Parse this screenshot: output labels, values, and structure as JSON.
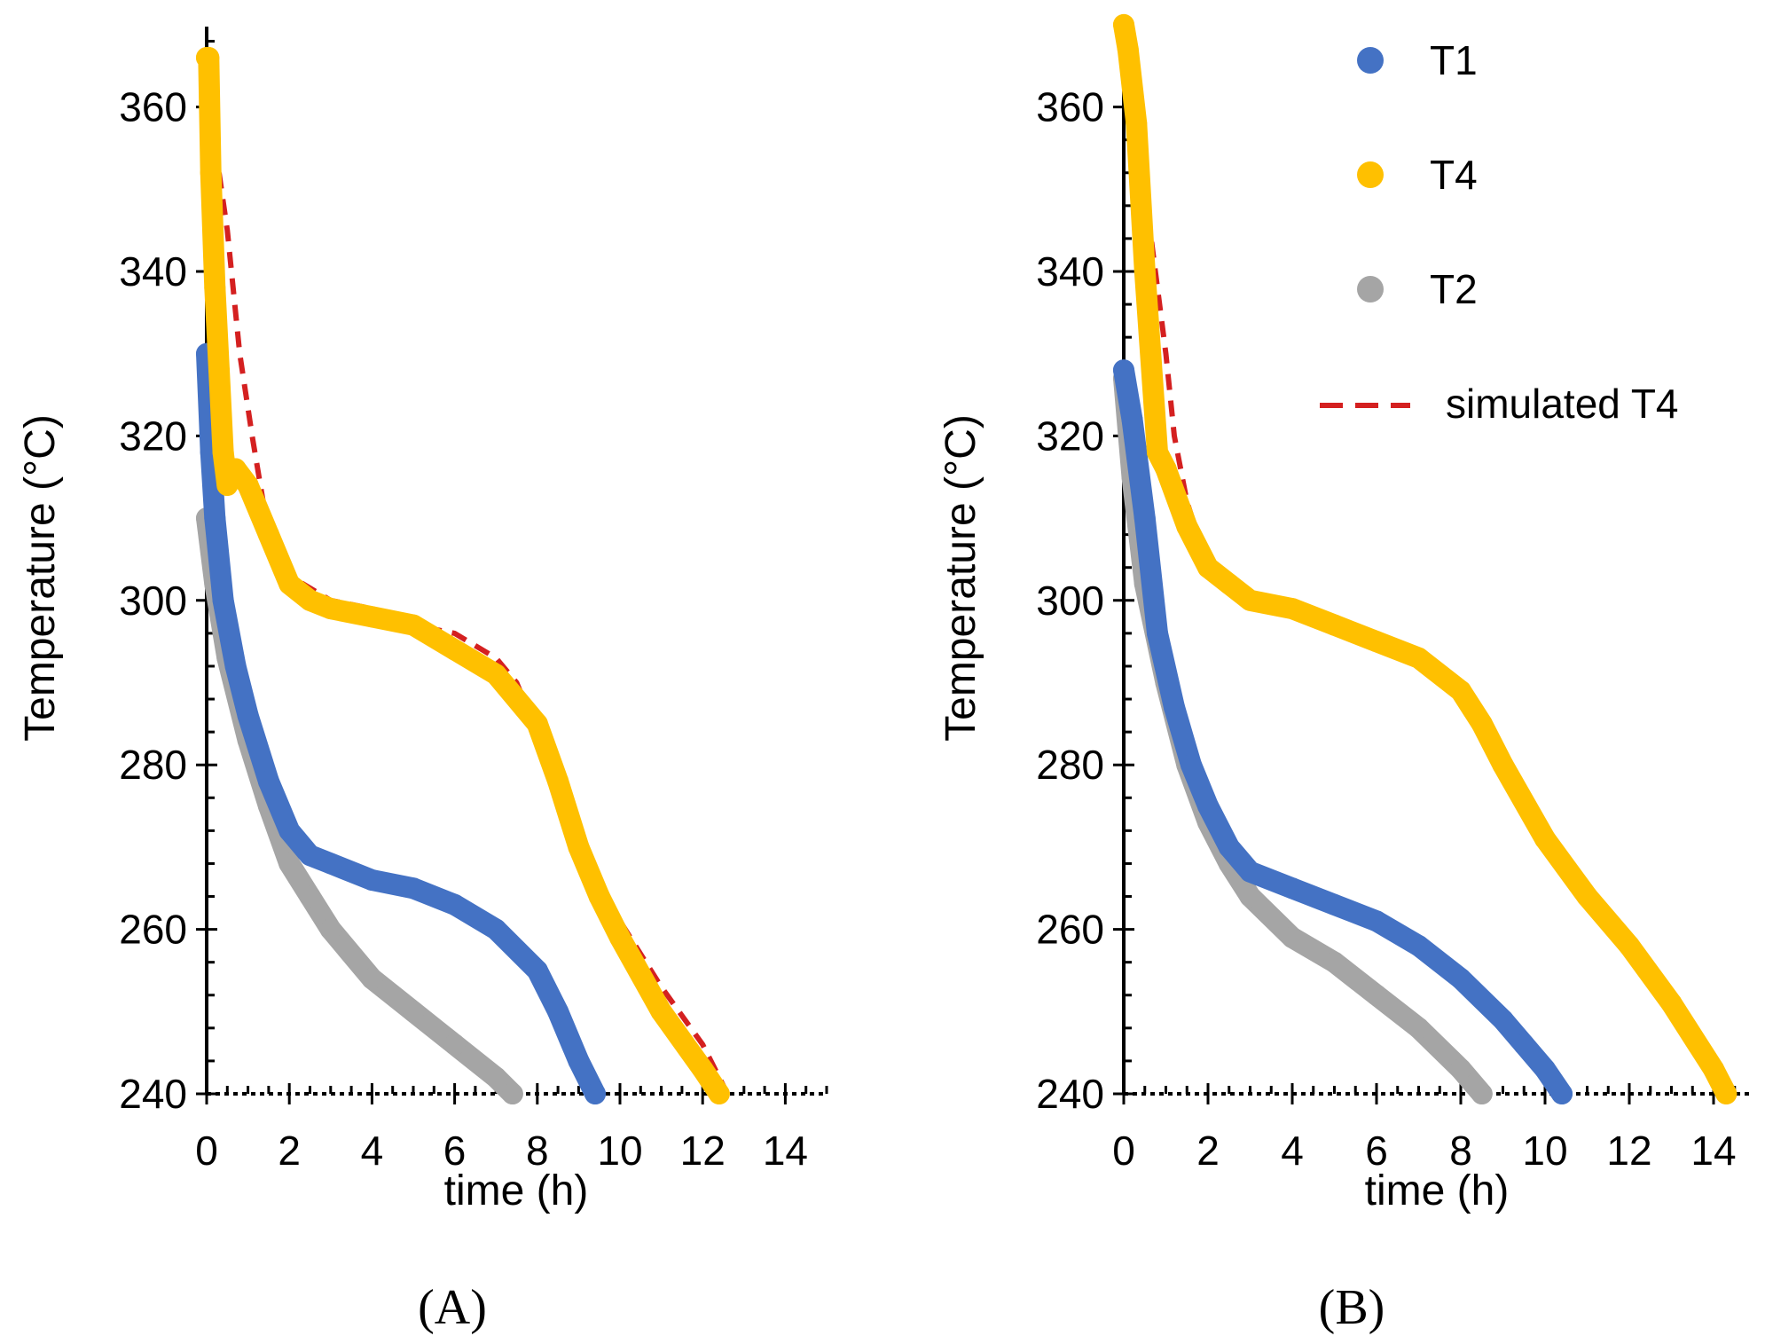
{
  "chart_data": [
    {
      "type": "scatter",
      "panel": "A",
      "panel_label": "(A)",
      "title": "",
      "xlabel": "time (h)",
      "ylabel": "Temperature (°C)",
      "xlim": [
        0,
        15
      ],
      "ylim": [
        240,
        370
      ],
      "xticks": [
        0,
        2,
        4,
        6,
        8,
        10,
        12,
        14
      ],
      "yticks": [
        240,
        260,
        280,
        300,
        320,
        340,
        360
      ],
      "grid": false,
      "series": [
        {
          "name": "T1",
          "kind": "measured",
          "color": "#4472c4",
          "x": [
            0,
            0.1,
            0.2,
            0.4,
            0.7,
            1.0,
            1.5,
            2.0,
            2.5,
            3.0,
            4.0,
            5.0,
            6.0,
            7.0,
            8.0,
            8.5,
            9.0,
            9.4
          ],
          "y": [
            330,
            318,
            310,
            300,
            292,
            286,
            278,
            272,
            269,
            268,
            266,
            265,
            263,
            260,
            255,
            250,
            244,
            240
          ]
        },
        {
          "name": "T4",
          "kind": "measured",
          "color": "#ffc000",
          "x": [
            0,
            0.05,
            0.1,
            0.2,
            0.3,
            0.4,
            0.5,
            0.7,
            1.0,
            1.5,
            2.0,
            2.5,
            3.0,
            4.0,
            5.0,
            6.0,
            7.0,
            8.0,
            8.5,
            9.0,
            9.5,
            10.0,
            11.0,
            12.0,
            12.4
          ],
          "y": [
            366,
            366,
            352,
            338,
            328,
            318,
            314,
            316,
            314,
            308,
            302,
            300,
            299,
            298,
            297,
            294,
            291,
            285,
            278,
            270,
            264,
            259,
            250,
            243,
            240
          ]
        },
        {
          "name": "T2",
          "kind": "measured",
          "color": "#a5a5a5",
          "x": [
            0,
            0.2,
            0.5,
            1.0,
            1.5,
            2.0,
            2.5,
            3.0,
            4.0,
            5.0,
            6.0,
            7.0,
            7.4
          ],
          "y": [
            310,
            302,
            293,
            283,
            275,
            268,
            264,
            260,
            254,
            250,
            246,
            242,
            240
          ]
        },
        {
          "name": "simulated T4",
          "kind": "simulated",
          "color": "#d42020",
          "x": [
            0.3,
            0.5,
            0.8,
            1.1,
            1.5,
            2.0,
            3.0,
            4.0,
            5.0,
            6.0,
            7.0,
            7.5,
            8.0,
            8.5,
            9.0,
            9.5,
            10.0,
            11.0,
            12.0,
            12.6
          ],
          "y": [
            352,
            345,
            330,
            320,
            308,
            303,
            300,
            299,
            297,
            296,
            293,
            290,
            284,
            277,
            271,
            266,
            261,
            253,
            246,
            240
          ]
        }
      ]
    },
    {
      "type": "scatter",
      "panel": "B",
      "panel_label": "(B)",
      "title": "",
      "xlabel": "time (h)",
      "ylabel": "Temperature (°C)",
      "xlim": [
        0,
        15
      ],
      "ylim": [
        240,
        370
      ],
      "xticks": [
        0,
        2,
        4,
        6,
        8,
        10,
        12,
        14
      ],
      "yticks": [
        240,
        260,
        280,
        300,
        320,
        340,
        360
      ],
      "grid": false,
      "legend": {
        "placement": "top-right",
        "entries": [
          {
            "label": "T1",
            "color": "#4472c4",
            "style": "marker"
          },
          {
            "label": "T4",
            "color": "#ffc000",
            "style": "marker"
          },
          {
            "label": "T2",
            "color": "#a5a5a5",
            "style": "marker"
          },
          {
            "label": "simulated T4",
            "color": "#d42020",
            "style": "dash"
          }
        ]
      },
      "series": [
        {
          "name": "T1",
          "kind": "measured",
          "color": "#4472c4",
          "x": [
            0,
            0.2,
            0.5,
            0.8,
            1.2,
            1.6,
            2.0,
            2.5,
            3.0,
            4.0,
            5.0,
            6.0,
            7.0,
            8.0,
            9.0,
            9.5,
            10.0,
            10.4
          ],
          "y": [
            328,
            322,
            310,
            296,
            287,
            280,
            275,
            270,
            267,
            265,
            263,
            261,
            258,
            254,
            249,
            246,
            243,
            240
          ]
        },
        {
          "name": "T4",
          "kind": "measured",
          "color": "#ffc000",
          "x": [
            0,
            0.1,
            0.3,
            0.5,
            0.8,
            1.0,
            1.5,
            2.0,
            2.5,
            3.0,
            4.0,
            5.0,
            6.0,
            7.0,
            8.0,
            8.5,
            9.0,
            10.0,
            11.0,
            12.0,
            13.0,
            14.0,
            14.3
          ],
          "y": [
            370,
            367,
            358,
            340,
            318,
            316,
            309,
            304,
            302,
            300,
            299,
            297,
            295,
            293,
            289,
            285,
            280,
            271,
            264,
            258,
            251,
            243,
            240
          ]
        },
        {
          "name": "T2",
          "kind": "measured",
          "color": "#a5a5a5",
          "x": [
            0,
            0.2,
            0.5,
            1.0,
            1.5,
            2.0,
            2.5,
            3.0,
            4.0,
            5.0,
            6.0,
            7.0,
            8.0,
            8.5
          ],
          "y": [
            327,
            315,
            302,
            290,
            280,
            273,
            268,
            264,
            259,
            256,
            252,
            248,
            243,
            240
          ]
        },
        {
          "name": "simulated T4",
          "kind": "simulated",
          "color": "#d42020",
          "x": [
            0.5,
            0.7,
            1.0,
            1.2,
            1.5,
            2.0,
            3.0,
            4.0,
            5.0,
            6.0,
            7.0,
            8.0,
            9.0,
            10.0,
            11.0,
            12.0,
            13.0,
            14.0,
            14.3
          ],
          "y": [
            350,
            342,
            330,
            320,
            312,
            304,
            300,
            299,
            297,
            295,
            292,
            288,
            282,
            271,
            264,
            257,
            250,
            243,
            240
          ]
        }
      ]
    }
  ]
}
